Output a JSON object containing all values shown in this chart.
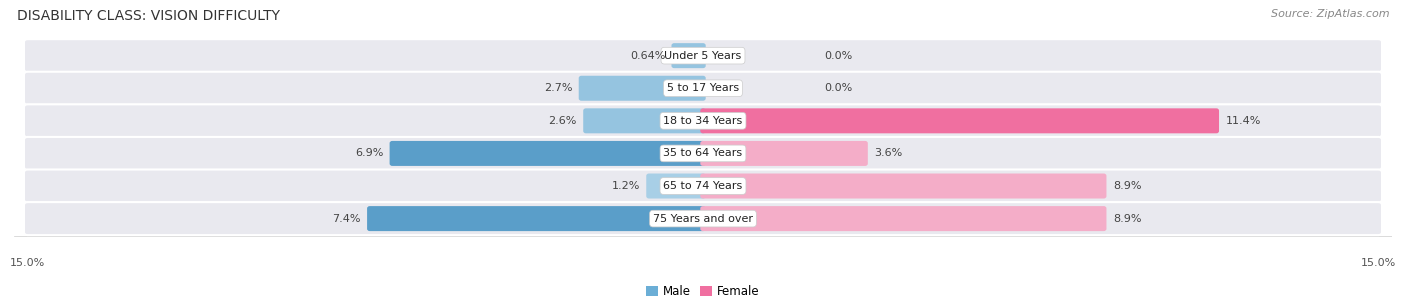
{
  "title": "DISABILITY CLASS: VISION DIFFICULTY",
  "source": "Source: ZipAtlas.com",
  "categories": [
    "Under 5 Years",
    "5 to 17 Years",
    "18 to 34 Years",
    "35 to 64 Years",
    "65 to 74 Years",
    "75 Years and over"
  ],
  "male_values": [
    0.64,
    2.7,
    2.6,
    6.9,
    1.2,
    7.4
  ],
  "female_values": [
    0.0,
    0.0,
    11.4,
    3.6,
    8.9,
    8.9
  ],
  "male_labels": [
    "0.64%",
    "2.7%",
    "2.6%",
    "6.9%",
    "1.2%",
    "7.4%"
  ],
  "female_labels": [
    "0.0%",
    "0.0%",
    "11.4%",
    "3.6%",
    "8.9%",
    "8.9%"
  ],
  "male_colors": [
    "#95c4e0",
    "#95c4e0",
    "#95c4e0",
    "#5a9ec9",
    "#a8cfe6",
    "#5a9ec9"
  ],
  "female_colors": [
    "#f4adc8",
    "#f4adc8",
    "#f06fa0",
    "#f4adc8",
    "#f4adc8",
    "#f4adc8"
  ],
  "bar_bg_color": "#e9e9ef",
  "x_max": 15.0,
  "title_fontsize": 10,
  "source_fontsize": 8,
  "label_fontsize": 8,
  "category_fontsize": 8,
  "axis_label_fontsize": 8
}
